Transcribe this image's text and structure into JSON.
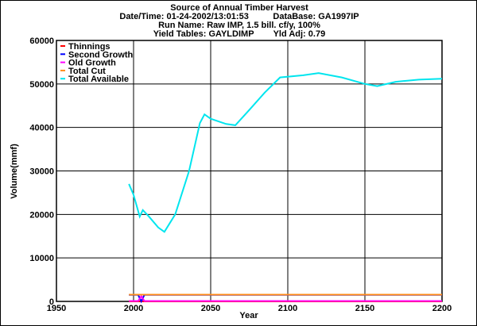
{
  "chart_data": {
    "type": "line",
    "title": "Source of Annual Timber Harvest",
    "subtitle_lines": [
      "Date/Time: 01-24-2002/13:01:53          DataBase: GA1997IP",
      "Run Name: Raw IMP, 1.5 bill. cf/y, 100%",
      "Yield Tables: GAYLDIMP        Yld Adj: 0.79"
    ],
    "xlabel": "Year",
    "ylabel": "Volume(mmf)",
    "xlim": [
      1950,
      2200
    ],
    "ylim": [
      0,
      60000
    ],
    "xticks": [
      1950,
      2000,
      2050,
      2100,
      2150,
      2200
    ],
    "yticks": [
      0,
      10000,
      20000,
      30000,
      40000,
      50000,
      60000
    ],
    "grid": true,
    "legend_placement": "top-left",
    "series": [
      {
        "name": "Thinnings",
        "color": "#ff0000",
        "x": [
          1997,
          2200
        ],
        "y": [
          0,
          0
        ]
      },
      {
        "name": "Second Growth",
        "color": "#0000ff",
        "x": [
          1997,
          2003,
          2005,
          2007,
          2010,
          2200
        ],
        "y": [
          1500,
          1500,
          0,
          1500,
          1500,
          1500
        ]
      },
      {
        "name": "Old Growth",
        "color": "#ff00ff",
        "x": [
          1997,
          2003,
          2005,
          2007,
          2200
        ],
        "y": [
          100,
          100,
          1200,
          100,
          100
        ]
      },
      {
        "name": "Total Cut",
        "color": "#ff8c1a",
        "x": [
          1997,
          2200
        ],
        "y": [
          1550,
          1550
        ]
      },
      {
        "name": "Total Available",
        "color": "#00e5ee",
        "x": [
          1997,
          2000,
          2004,
          2006,
          2010,
          2016,
          2020,
          2027,
          2036,
          2043,
          2046,
          2050,
          2060,
          2066,
          2075,
          2085,
          2095,
          2110,
          2120,
          2135,
          2150,
          2158,
          2170,
          2185,
          2200
        ],
        "y": [
          27000,
          24500,
          19500,
          21000,
          19500,
          17000,
          16000,
          20000,
          30000,
          41000,
          43000,
          42000,
          40800,
          40500,
          44000,
          48000,
          51500,
          52000,
          52500,
          51500,
          50000,
          49500,
          50500,
          51000,
          51200
        ]
      }
    ]
  }
}
